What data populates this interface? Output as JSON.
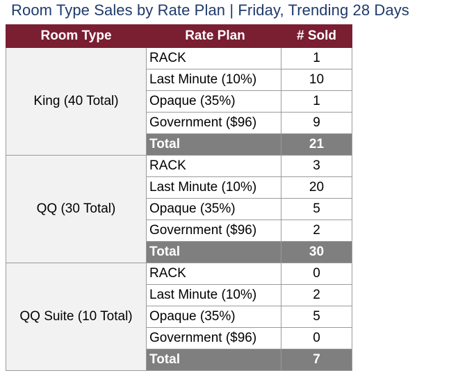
{
  "title": "Room Type Sales by Rate Plan | Friday, Trending 28 Days",
  "headers": {
    "room_type": "Room Type",
    "rate_plan": "Rate Plan",
    "sold": "# Sold"
  },
  "groups": [
    {
      "room_type": "King (40 Total)",
      "rows": [
        {
          "plan": "RACK",
          "sold": "1"
        },
        {
          "plan": "Last Minute (10%)",
          "sold": "10"
        },
        {
          "plan": "Opaque (35%)",
          "sold": "1"
        },
        {
          "plan": "Government ($96)",
          "sold": "9"
        }
      ],
      "total_label": "Total",
      "total": "21"
    },
    {
      "room_type": "QQ (30 Total)",
      "rows": [
        {
          "plan": "RACK",
          "sold": "3"
        },
        {
          "plan": "Last Minute (10%)",
          "sold": "20"
        },
        {
          "plan": "Opaque (35%)",
          "sold": "5"
        },
        {
          "plan": "Government ($96)",
          "sold": "2"
        }
      ],
      "total_label": "Total",
      "total": "30"
    },
    {
      "room_type": "QQ Suite (10 Total)",
      "rows": [
        {
          "plan": "RACK",
          "sold": "0"
        },
        {
          "plan": "Last Minute (10%)",
          "sold": "2"
        },
        {
          "plan": "Opaque (35%)",
          "sold": "5"
        },
        {
          "plan": "Government ($96)",
          "sold": "0"
        }
      ],
      "total_label": "Total",
      "total": "7"
    }
  ],
  "colors": {
    "header_bg": "#7a1e32",
    "total_bg": "#7f7f7f",
    "title_color": "#1f3a6b"
  }
}
